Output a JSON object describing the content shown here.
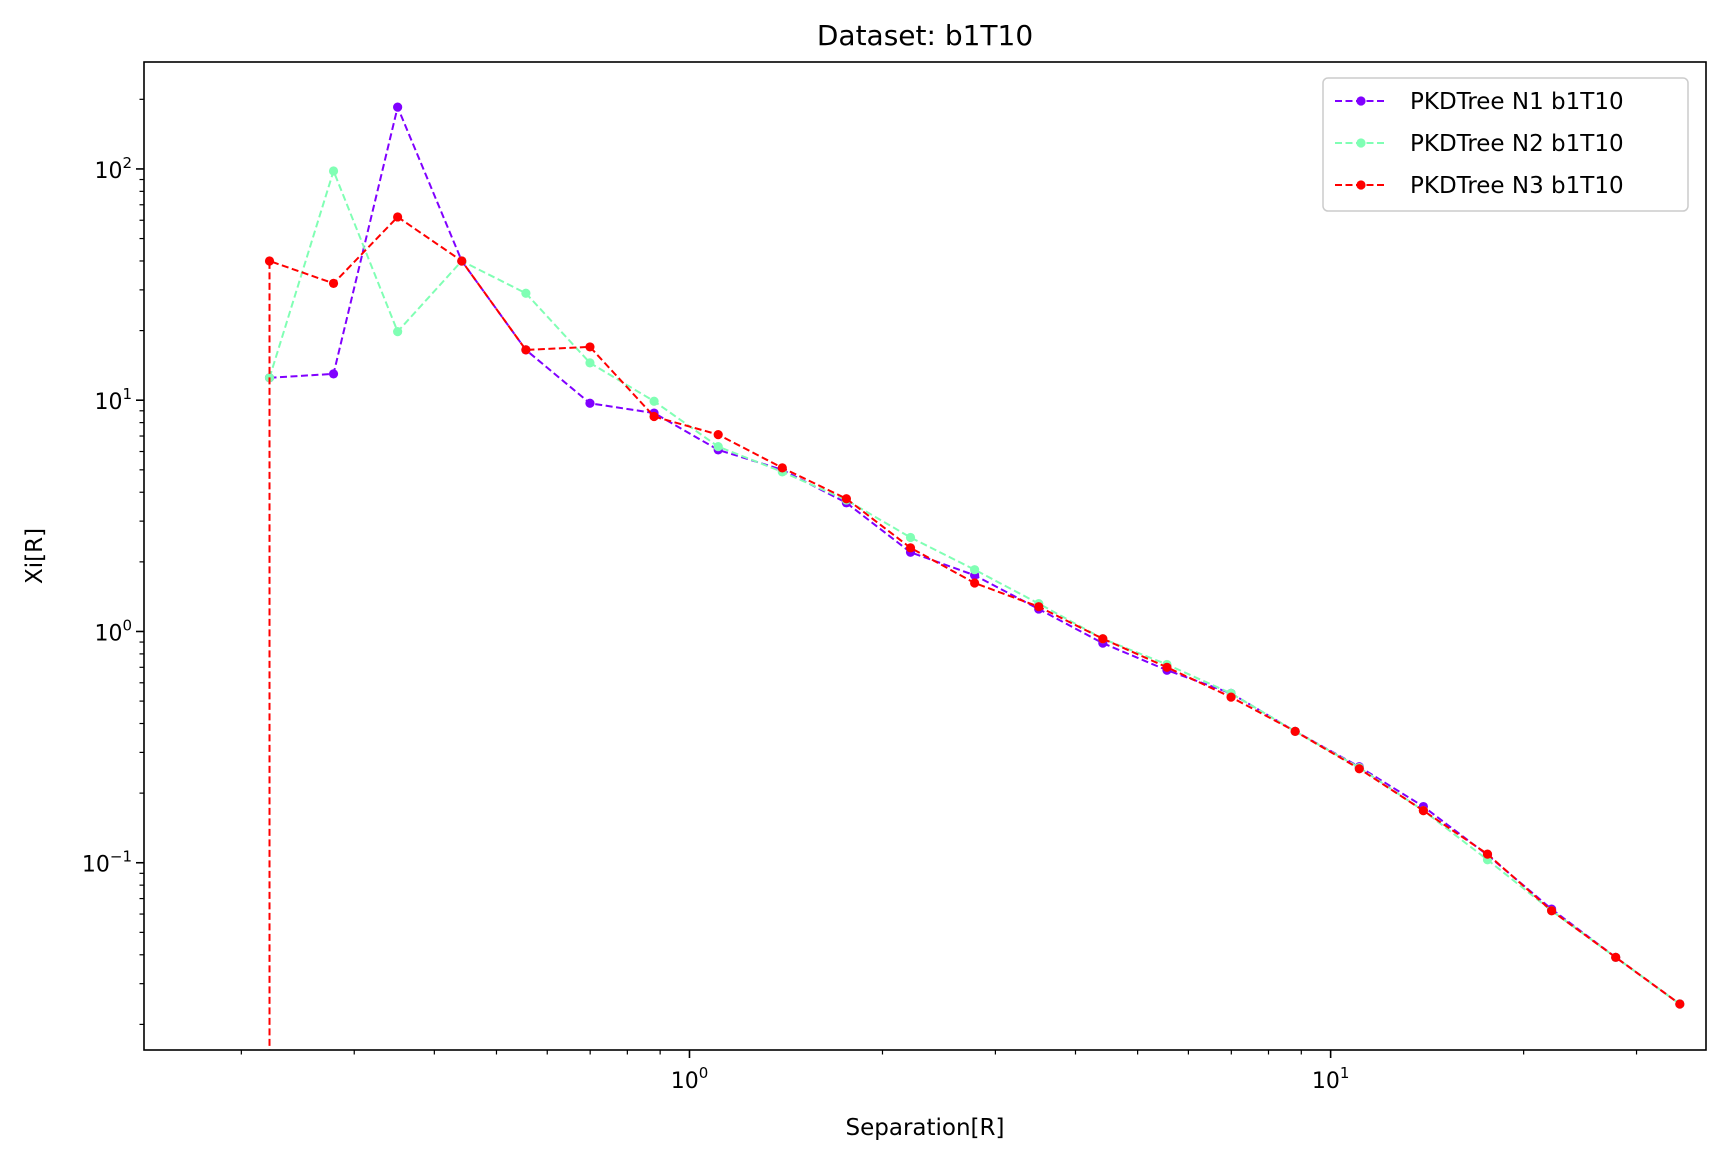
{
  "chart_data": {
    "type": "line",
    "title": "Dataset: b1T10",
    "xlabel": "Separation[R]",
    "ylabel": "Xi[R]",
    "xscale": "log",
    "yscale": "log",
    "xlim": [
      0.141,
      38.5
    ],
    "ylim": [
      0.0155,
      290
    ],
    "grid": false,
    "legend": "top-right",
    "x_ticks": [
      {
        "value": 1,
        "base": "10",
        "exp": "0"
      },
      {
        "value": 10,
        "base": "10",
        "exp": "1"
      }
    ],
    "y_ticks": [
      {
        "value": 0.1,
        "base": "10",
        "exp": "−1"
      },
      {
        "value": 1,
        "base": "10",
        "exp": "0"
      },
      {
        "value": 10,
        "base": "10",
        "exp": "1"
      },
      {
        "value": 100,
        "base": "10",
        "exp": "2"
      }
    ],
    "series": [
      {
        "name": "PKDTree N1 b1T10",
        "color": "#8000ff",
        "x": [
          0.2213,
          0.2785,
          0.3506,
          0.4414,
          0.5557,
          0.6995,
          0.8806,
          1.1086,
          1.3956,
          1.7569,
          2.2118,
          2.7844,
          3.5053,
          4.4128,
          5.5553,
          6.9935,
          8.8041,
          11.0835,
          13.9529,
          17.5653,
          22.1128,
          27.8379,
          35.0451
        ],
        "values": [
          12.5,
          13.0,
          185.0,
          40.0,
          16.5,
          9.7,
          8.8,
          6.1,
          5.0,
          3.6,
          2.2,
          1.75,
          1.25,
          0.89,
          0.68,
          0.54,
          0.37,
          0.26,
          0.175,
          0.108,
          0.063,
          0.039,
          0.0245
        ]
      },
      {
        "name": "PKDTree N2 b1T10",
        "color": "#80ffb4",
        "x": [
          0.2213,
          0.2785,
          0.3506,
          0.4414,
          0.5557,
          0.6995,
          0.8806,
          1.1086,
          1.3956,
          1.7569,
          2.2118,
          2.7844,
          3.5053,
          4.4128,
          5.5553,
          6.9935,
          8.8041,
          11.0835,
          13.9529,
          17.5653,
          22.1128,
          27.8379,
          35.0451
        ],
        "values": [
          12.5,
          98.0,
          19.8,
          40.0,
          29.0,
          14.5,
          9.9,
          6.3,
          4.9,
          3.7,
          2.55,
          1.85,
          1.32,
          0.93,
          0.72,
          0.54,
          0.37,
          0.258,
          0.168,
          0.103,
          0.062,
          0.039,
          0.0245
        ]
      },
      {
        "name": "PKDTree N3 b1T10",
        "color": "#ff0000",
        "x": [
          0.2213,
          0.2213,
          0.2785,
          0.3506,
          0.4414,
          0.5557,
          0.6995,
          0.8806,
          1.1086,
          1.3956,
          1.7569,
          2.2118,
          2.7844,
          3.5053,
          4.4128,
          5.5553,
          6.9935,
          8.8041,
          11.0835,
          13.9529,
          17.5653,
          22.1128,
          27.8379,
          35.0451
        ],
        "values": [
          0.0001,
          40.0,
          32.0,
          62.0,
          40.0,
          16.5,
          17.0,
          8.5,
          7.1,
          5.1,
          3.75,
          2.3,
          1.62,
          1.28,
          0.93,
          0.7,
          0.52,
          0.37,
          0.255,
          0.168,
          0.109,
          0.062,
          0.039,
          0.0245
        ]
      }
    ]
  }
}
